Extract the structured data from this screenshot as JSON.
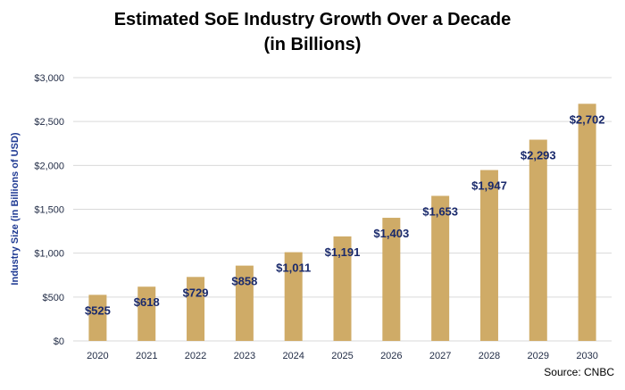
{
  "chart_data": {
    "type": "bar",
    "title_line1": "Estimated SoE Industry Growth Over a Decade",
    "title_line2": "(in Billions)",
    "ylabel": "Industry Size (in Billions of USD)",
    "xlabel": "",
    "categories": [
      "2020",
      "2021",
      "2022",
      "2023",
      "2024",
      "2025",
      "2026",
      "2027",
      "2028",
      "2029",
      "2030"
    ],
    "values": [
      525,
      618,
      729,
      858,
      1011,
      1191,
      1403,
      1653,
      1947,
      2293,
      2702
    ],
    "data_labels": [
      "$525",
      "$618",
      "$729",
      "$858",
      "$1,011",
      "$1,191",
      "$1,403",
      "$1,653",
      "$1,947",
      "$2,293",
      "$2,702"
    ],
    "yticks": [
      0,
      500,
      1000,
      1500,
      2000,
      2500,
      3000
    ],
    "ytick_labels": [
      "$0",
      "$500",
      "$1,000",
      "$1,500",
      "$2,000",
      "$2,500",
      "$3,000"
    ],
    "ylim": [
      0,
      3000
    ],
    "grid": "horizontal",
    "source": "Source: CNBC",
    "colors": {
      "bar": "#cfab67",
      "grid": "#d9d9d9",
      "label": "#1a2a6c"
    }
  }
}
